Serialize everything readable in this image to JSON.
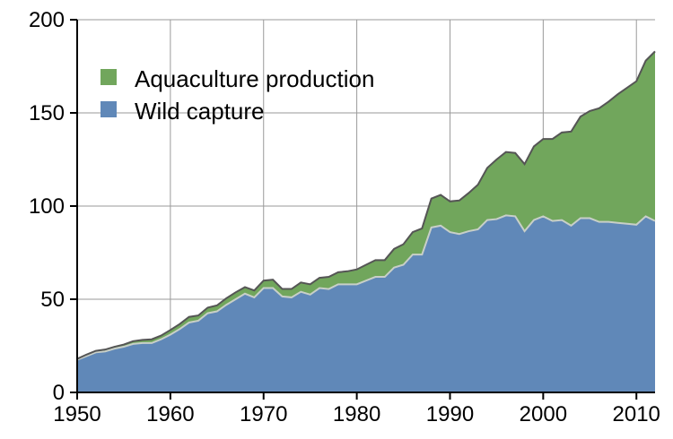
{
  "chart_data": {
    "type": "area",
    "stacked": true,
    "x": [
      1950,
      1951,
      1952,
      1953,
      1954,
      1955,
      1956,
      1957,
      1958,
      1959,
      1960,
      1961,
      1962,
      1963,
      1964,
      1965,
      1966,
      1967,
      1968,
      1969,
      1970,
      1971,
      1972,
      1973,
      1974,
      1975,
      1976,
      1977,
      1978,
      1979,
      1980,
      1981,
      1982,
      1983,
      1984,
      1985,
      1986,
      1987,
      1988,
      1989,
      1990,
      1991,
      1992,
      1993,
      1994,
      1995,
      1996,
      1997,
      1998,
      1999,
      2000,
      2001,
      2002,
      2003,
      2004,
      2005,
      2006,
      2007,
      2008,
      2009,
      2010,
      2011,
      2012
    ],
    "series": [
      {
        "name": "Wild capture",
        "color": "#6088b8",
        "values": [
          17.5,
          19.5,
          21.5,
          22,
          23.5,
          24.5,
          26,
          26.5,
          26.5,
          28.5,
          31,
          34,
          37.5,
          38.5,
          42.5,
          43.5,
          47,
          50,
          53,
          51,
          56,
          56,
          51.5,
          51,
          54,
          52.5,
          56,
          55.5,
          58,
          58,
          58,
          60,
          62,
          62,
          67,
          68.5,
          74,
          74,
          88.5,
          89.5,
          86,
          85,
          86.5,
          87.5,
          92.5,
          93,
          95,
          94.5,
          86.5,
          92.5,
          94.5,
          92,
          92.5,
          89.5,
          93.5,
          93.5,
          91.5,
          91.5,
          91,
          90.5,
          90,
          94.5,
          92
        ]
      },
      {
        "name": "Aquaculture production",
        "color": "#71a65c",
        "values": [
          0.5,
          0.8,
          0.8,
          1,
          1,
          1.2,
          1.5,
          1.7,
          2,
          2,
          2.5,
          2.7,
          3,
          2.8,
          3,
          3.2,
          3.5,
          3.7,
          3.5,
          3.7,
          4,
          4.5,
          4,
          4.5,
          5,
          5.5,
          5.5,
          6.5,
          6.5,
          7,
          8,
          8.5,
          9,
          9,
          10,
          11,
          12,
          14,
          15.5,
          16.5,
          16.5,
          18,
          20.5,
          24,
          28,
          32,
          34,
          34,
          36,
          39.5,
          41.5,
          44,
          47,
          50.5,
          54.5,
          57.5,
          61,
          64.5,
          69,
          73,
          77,
          83.5,
          91
        ]
      }
    ],
    "xlim": [
      1950,
      2012
    ],
    "ylim": [
      0,
      200
    ],
    "xticks": [
      1950,
      1960,
      1970,
      1980,
      1990,
      2000,
      2010
    ],
    "yticks": [
      0,
      50,
      100,
      150,
      200
    ],
    "grid": true,
    "legend_position": "top-left",
    "title": "",
    "xlabel": "",
    "ylabel": ""
  }
}
